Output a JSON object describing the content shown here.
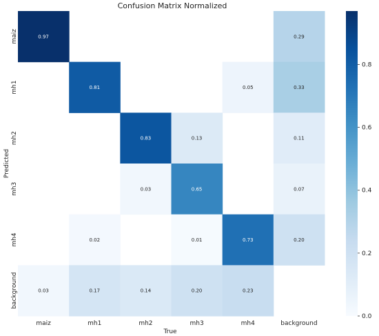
{
  "chart_data": {
    "type": "heatmap",
    "title": "Confusion Matrix Normalized",
    "xlabel": "True",
    "ylabel": "Predicted",
    "x_categories": [
      "maiz",
      "mh1",
      "mh2",
      "mh3",
      "mh4",
      "background"
    ],
    "y_categories": [
      "maiz",
      "mh1",
      "mh2",
      "mh3",
      "mh4",
      "background"
    ],
    "values": [
      [
        0.97,
        null,
        null,
        null,
        null,
        0.29
      ],
      [
        null,
        0.81,
        null,
        null,
        0.05,
        0.33
      ],
      [
        null,
        null,
        0.83,
        0.13,
        null,
        0.11
      ],
      [
        null,
        null,
        0.03,
        0.65,
        null,
        0.07
      ],
      [
        null,
        0.02,
        null,
        0.01,
        0.73,
        0.2
      ],
      [
        0.03,
        0.17,
        0.14,
        0.2,
        0.23,
        null
      ]
    ],
    "colorbar": {
      "range": [
        0.0,
        0.97
      ],
      "ticks": [
        "0.0",
        "0.2",
        "0.4",
        "0.6",
        "0.8"
      ],
      "colormap": "Blues"
    }
  }
}
